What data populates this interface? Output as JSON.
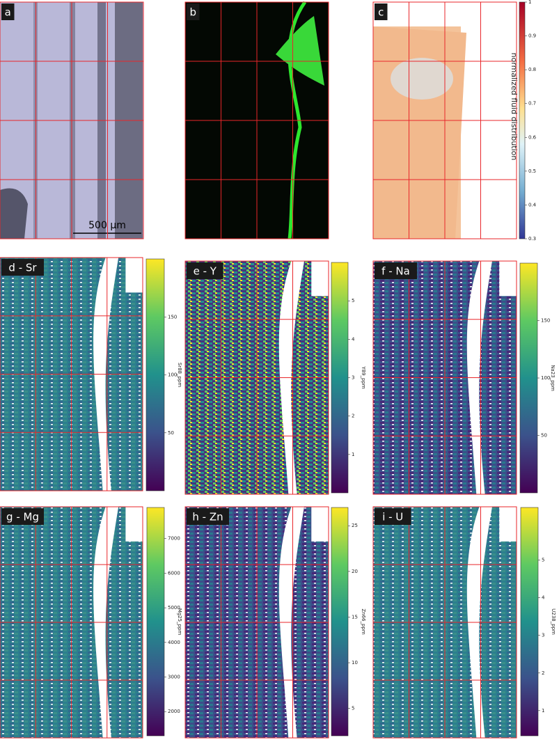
{
  "panels": [
    {
      "label": "a",
      "scale_bar": "500 µm"
    },
    {
      "label": "b"
    },
    {
      "label": "c",
      "colorbar": {
        "label": "normalized fluid distribution",
        "clim": [
          0.3,
          1
        ],
        "ticks": [
          0.3,
          0.4,
          0.5,
          0.6,
          0.7,
          0.8,
          0.9,
          1
        ]
      }
    },
    {
      "label": "d - Sr",
      "colorbar": {
        "label": "Sr88_ppm",
        "clim": [
          0,
          200
        ],
        "ticks": [
          50,
          100,
          150
        ]
      }
    },
    {
      "label": "e - Y",
      "colorbar": {
        "label": "Y89_ppm",
        "clim": [
          0,
          6
        ],
        "ticks": [
          1,
          2,
          3,
          4,
          5
        ]
      }
    },
    {
      "label": "f - Na",
      "colorbar": {
        "label": "Na23_ppm",
        "clim": [
          0,
          200
        ],
        "ticks": [
          50,
          100,
          150
        ]
      }
    },
    {
      "label": "g - Mg",
      "colorbar": {
        "label": "Mg25_ppm",
        "clim": [
          1300,
          7900
        ],
        "ticks": [
          2000,
          3000,
          4000,
          5000,
          6000,
          7000
        ]
      }
    },
    {
      "label": "h - Zn",
      "colorbar": {
        "label": "Zn66_ppm",
        "clim": [
          2,
          27
        ],
        "ticks": [
          5,
          10,
          15,
          20,
          25
        ]
      }
    },
    {
      "label": "i - U",
      "colorbar": {
        "label": "U238_ppm",
        "clim": [
          0.33,
          6.4
        ],
        "ticks": [
          1,
          2,
          3,
          4,
          5
        ]
      }
    }
  ]
}
